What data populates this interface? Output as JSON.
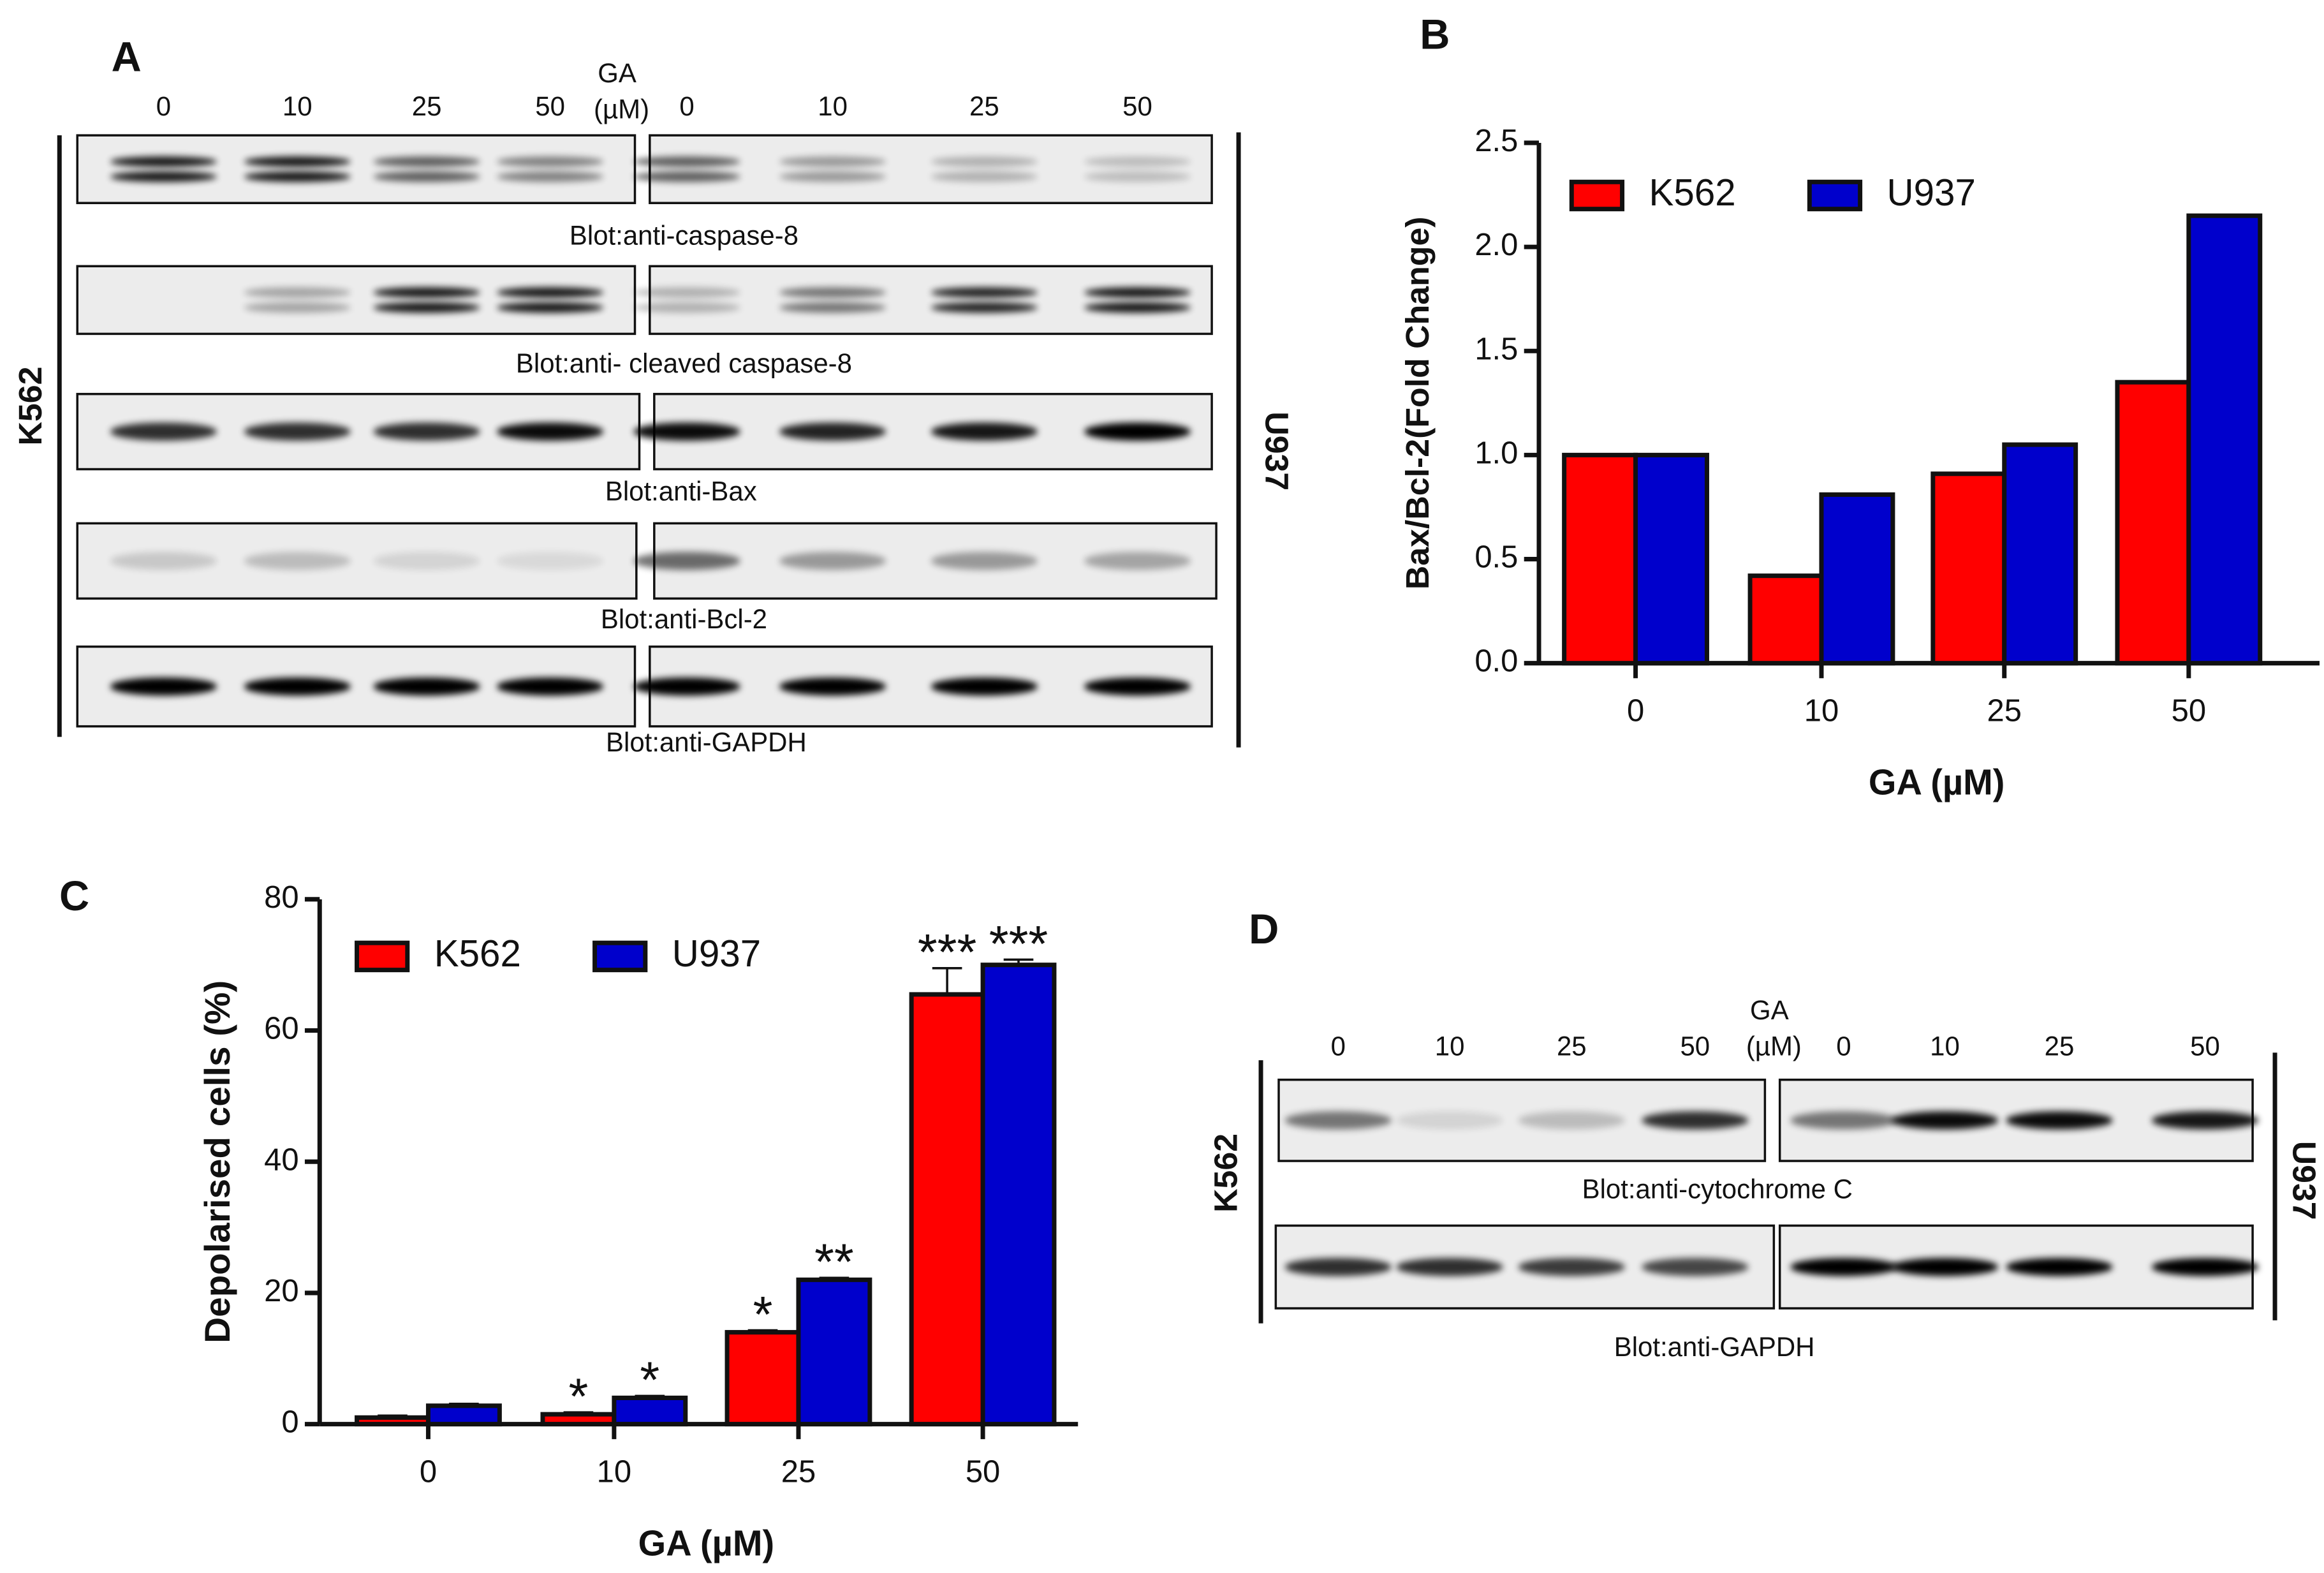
{
  "figure": {
    "panel_a": {
      "letter": "A",
      "treatment_label": [
        "GA",
        "(µM)"
      ],
      "k562_lanes": [
        "0",
        "10",
        "25",
        "50"
      ],
      "u937_lanes": [
        "0",
        "10",
        "25",
        "50"
      ],
      "cell_lines": [
        "K562",
        "U937"
      ],
      "blots": [
        "Blot:anti-caspase-8",
        "Blot:anti- cleaved caspase-8",
        "Blot:anti-Bax",
        "Blot:anti-Bcl-2",
        "Blot:anti-GAPDH"
      ]
    },
    "panel_d": {
      "letter": "D",
      "treatment_label": [
        "GA",
        "(µM)"
      ],
      "k562_lanes": [
        "0",
        "10",
        "25",
        "50"
      ],
      "u937_lanes": [
        "0",
        "10",
        "25",
        "50"
      ],
      "cell_lines": [
        "K562",
        "U937"
      ],
      "blots": [
        "Blot:anti-cytochrome C",
        "Blot:anti-GAPDH"
      ]
    }
  },
  "chart_data": [
    {
      "type": "bar",
      "panel": "B",
      "x_label": "GA (µM)",
      "y_label": "Bax/Bcl-2(Fold Change)",
      "categories": [
        "0",
        "10",
        "25",
        "50"
      ],
      "series": [
        {
          "name": "K562",
          "color": "#ff0000",
          "values": [
            1.0,
            0.42,
            0.91,
            1.35
          ]
        },
        {
          "name": "U937",
          "color": "#0000cc",
          "values": [
            1.0,
            0.81,
            1.05,
            2.15
          ]
        }
      ],
      "ylim": [
        0,
        2.5
      ],
      "yticks": [
        {
          "value": 0,
          "label": "0.0"
        },
        0.5,
        {
          "value": 1,
          "label": "1.0"
        },
        1.5,
        {
          "value": 2,
          "label": "2.0"
        },
        2.5
      ],
      "legend": "top-left"
    },
    {
      "type": "bar",
      "panel": "C",
      "x_label": "GA (µM)",
      "y_label": "Depolarised cells (%)",
      "categories": [
        "0",
        "10",
        "25",
        "50"
      ],
      "series": [
        {
          "name": "K562",
          "color": "#ff0000",
          "values": [
            1,
            1.5,
            14,
            65.5
          ],
          "errors": [
            0.3,
            0.3,
            0.3,
            4
          ],
          "significance": [
            null,
            "*",
            "*",
            "***"
          ]
        },
        {
          "name": "U937",
          "color": "#0000cc",
          "values": [
            2.8,
            4,
            22,
            70
          ],
          "errors": [
            0.3,
            0.3,
            0.3,
            0.8
          ],
          "significance": [
            null,
            "*",
            "**",
            "***"
          ]
        }
      ],
      "ylim": [
        0,
        80
      ],
      "yticks": [
        0,
        20,
        40,
        60,
        80
      ],
      "legend": "top-left"
    }
  ]
}
